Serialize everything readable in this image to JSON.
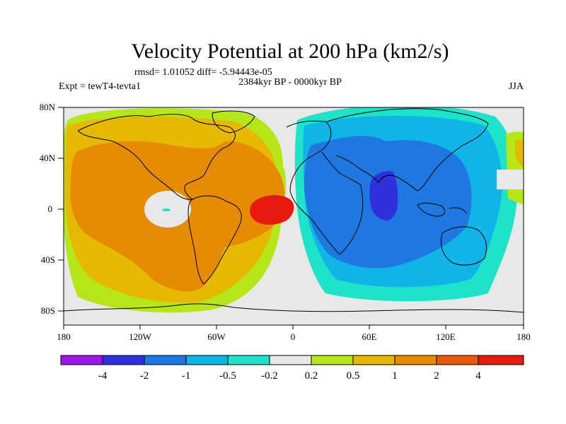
{
  "title": "Velocity Potential at 200 hPa (km2/s)",
  "stats": "rmsd= 1.01052 diff= -5.94443e-05",
  "period": "2384kyr BP - 0000kyr BP",
  "experiment": "Expt = tewT4-tevta1",
  "season": "JJA",
  "axes": {
    "y_ticks": [
      "80N",
      "40N",
      "0",
      "40S",
      "80S"
    ],
    "x_ticks": [
      "180",
      "120W",
      "60W",
      "0",
      "60E",
      "120E",
      "180"
    ]
  },
  "colorbar": {
    "colors": [
      "#9a17e6",
      "#2f2fdc",
      "#1f78e0",
      "#10b4e6",
      "#1ee3c8",
      "#e8e8e8",
      "#b6e61a",
      "#e6b800",
      "#e68a00",
      "#e65a10",
      "#e81a10"
    ],
    "labels": [
      "-4",
      "-2",
      "-1",
      "-0.5",
      "-0.2",
      "0.2",
      "0.5",
      "1",
      "2",
      "4"
    ]
  }
}
